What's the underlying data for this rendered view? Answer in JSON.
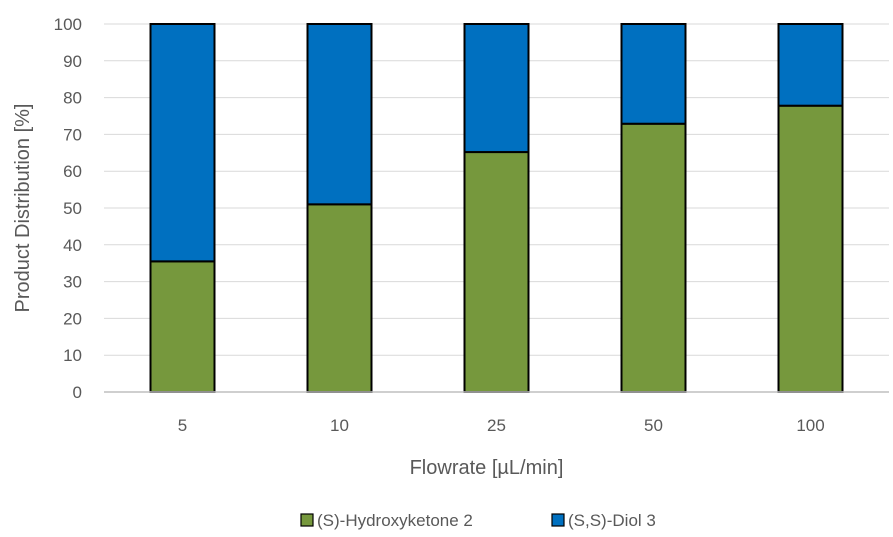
{
  "chart_data": {
    "type": "bar",
    "stacked": true,
    "categories": [
      "5",
      "10",
      "25",
      "50",
      "100"
    ],
    "series": [
      {
        "name": "(S)-Hydroxyketone 2",
        "values": [
          35.5,
          51,
          65.2,
          72.9,
          77.8
        ],
        "color": "#76983D"
      },
      {
        "name": "(S,S)-Diol 3",
        "values": [
          64.5,
          49,
          34.8,
          27.1,
          22.2
        ],
        "color": "#0070C0"
      }
    ],
    "xlabel": "Flowrate [µL/min]",
    "ylabel": "Product Distribution [%]",
    "ylim": [
      0,
      100
    ],
    "yticks": [
      0,
      10,
      20,
      30,
      40,
      50,
      60,
      70,
      80,
      90,
      100
    ],
    "grid": true,
    "legend_position": "bottom"
  }
}
